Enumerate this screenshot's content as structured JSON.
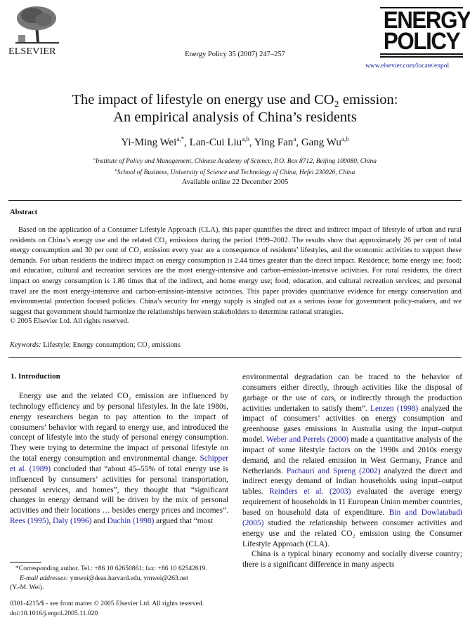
{
  "header": {
    "publisher": "ELSEVIER",
    "citation": "Energy Policy 35 (2007) 247–257",
    "journal_logo_line1": "ENERGY",
    "journal_logo_line2": "POLICY",
    "journal_url": "www.elsevier.com/locate/enpol"
  },
  "article": {
    "title_line1": "The impact of lifestyle on energy use and CO₂ emission:",
    "title_line2": "An empirical analysis of China’s residents",
    "authors": [
      {
        "name": "Yi-Ming Wei",
        "sup": "a,*",
        "sep": ", "
      },
      {
        "name": "Lan-Cui Liu",
        "sup": "a,b",
        "sep": ", "
      },
      {
        "name": "Ying Fan",
        "sup": "a",
        "sep": ", "
      },
      {
        "name": "Gang Wu",
        "sup": "a,b",
        "sep": ""
      }
    ],
    "affiliations": [
      {
        "mark": "a",
        "text": "Institute of Policy and Management, Chinese Academy of Science, P.O. Box 8712, Beijing 100080, China"
      },
      {
        "mark": "b",
        "text": "School of Business, University of Science and Technology of China, Hefei 230026, China"
      }
    ],
    "available_online": "Available online 22 December 2005"
  },
  "abstract": {
    "heading": "Abstract",
    "text": "Based on the application of a Consumer Lifestyle Approach (CLA), this paper quantifies the direct and indirect impact of lifestyle of urban and rural residents on China’s energy use and the related CO₂ emissions during the period 1999–2002. The results show that approximately 26 per cent of total energy consumption and 30 per cent of CO₂ emission every year are a consequence of residents’ lifestyles, and the economic activities to support these demands. For urban residents the indirect impact on energy consumption is 2.44 times greater than the direct impact. Residence; home energy use; food; and education, cultural and recreation services are the most energy-intensive and carbon-emission-intensive activities. For rural residents, the direct impact on energy consumption is 1.86 times that of the indirect, and home energy use; food; education, and cultural recreation services; and personal travel are the most energy-intensive and carbon-emission-intensive activities. This paper provides quantitative evidence for energy conservation and environmental protection focused policies. China’s security for energy supply is singled out as a serious issue for government policy-makers, and we suggest that government should harmonize the relationships between stakeholders to determine rational strategies.",
    "copyright": "© 2005 Elsevier Ltd. All rights reserved.",
    "keywords_label": "Keywords:",
    "keywords": "Lifestyle; Energy consumption; CO₂ emissions"
  },
  "section": {
    "heading": "1.  Introduction",
    "left_paragraphs": [
      [
        {
          "t": "Energy use and the related CO₂ emission are influenced by technology efficiency and by personal lifestyles. In the late 1980s, energy researchers began to pay attention to the impact of consumers’ behavior with regard to energy use, and introduced the concept of lifestyle into the study of personal energy consumption. They were trying to determine the impact of personal lifestyle on the total energy consumption and environmental change. "
        },
        {
          "t": "Schipper et al. (1989)",
          "ref": true
        },
        {
          "t": " concluded that “about 45–55% of total energy use is influenced by consumers’ activities for personal transportation, personal services, and homes”, they thought that “significant changes in energy demand will be driven by the mix of personal activities and their locations … besides energy prices and incomes”. "
        },
        {
          "t": "Rees (1995)",
          "ref": true
        },
        {
          "t": ", "
        },
        {
          "t": "Daly (1996)",
          "ref": true
        },
        {
          "t": " and "
        },
        {
          "t": "Duchin (1998)",
          "ref": true
        },
        {
          "t": " argued that “most"
        }
      ]
    ],
    "right_paragraphs": [
      [
        {
          "t": "environmental degradation can be traced to the behavior of consumers either directly, through activities like the disposal of garbage or the use of cars, or indirectly through the production activities undertaken to satisfy them”. "
        },
        {
          "t": "Lenzen (1998)",
          "ref": true
        },
        {
          "t": " analyzed the impact of consumers’ activities on energy consumption and greenhouse gases emissions in Australia using the input–output model. "
        },
        {
          "t": "Weber and Perrels (2000)",
          "ref": true
        },
        {
          "t": " made a quantitative analysis of the impact of some lifestyle factors on the 1990s and 2010s energy demand, and the related emission in West Germany, France and Netherlands. "
        },
        {
          "t": "Pachauri and Spreng (2002)",
          "ref": true
        },
        {
          "t": " analyzed the direct and indirect energy demand of Indian households using input–output tables. "
        },
        {
          "t": "Reinders et al. (2003)",
          "ref": true
        },
        {
          "t": " evaluated the average energy requirement of households in 11 European Union member countries, based on household data of expenditure. "
        },
        {
          "t": "Bin and Dowlatabadi (2005)",
          "ref": true
        },
        {
          "t": " studied the relationship between consumer activities and energy use and the related CO₂ emission using the Consumer Lifestyle Approach (CLA)."
        }
      ],
      [
        {
          "t": "China is a typical binary economy and socially diverse country; there is a significant difference in many aspects"
        }
      ]
    ]
  },
  "footnote": {
    "corresponding": "*Corresponding author. Tel.:  +86 10 62650861; fax:  +86 10 62542619.",
    "email_label": "E-mail addresses:",
    "emails": " ymwei@deas.harvard.edu, ymwei@263.net",
    "name": "(Y.-M. Wei).",
    "issn": "0301-4215/$ - see front matter © 2005 Elsevier Ltd. All rights reserved.",
    "doi": "doi:10.1016/j.enpol.2005.11.020"
  },
  "colors": {
    "link": "#1a1a9c",
    "text": "#111111"
  }
}
